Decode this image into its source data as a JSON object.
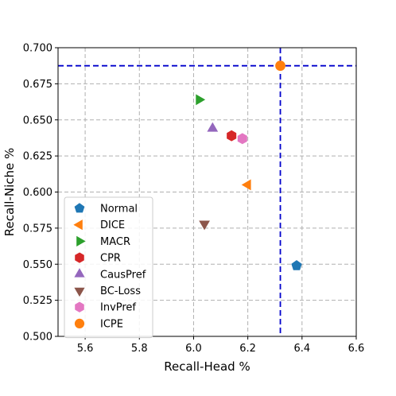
{
  "chart_data": {
    "type": "scatter",
    "title": "",
    "xlabel": "Recall-Head %",
    "ylabel": "Recall-Niche %",
    "xlim": [
      5.5,
      6.6
    ],
    "ylim": [
      0.5,
      0.7
    ],
    "xticks": [
      "5.6",
      "5.8",
      "6.0",
      "6.2",
      "6.4",
      "6.6"
    ],
    "xtick_values": [
      5.6,
      5.8,
      6.0,
      6.2,
      6.4,
      6.6
    ],
    "yticks": [
      "0.500",
      "0.525",
      "0.550",
      "0.575",
      "0.600",
      "0.625",
      "0.650",
      "0.675",
      "0.700"
    ],
    "ytick_values": [
      0.5,
      0.525,
      0.55,
      0.575,
      0.6,
      0.625,
      0.65,
      0.675,
      0.7
    ],
    "grid": true,
    "legend_position": "bottom-left",
    "reference_lines": {
      "x": 6.32,
      "y": 0.6875,
      "color": "#0000cc",
      "style": "dashed"
    },
    "series": [
      {
        "name": "Normal",
        "x": 6.38,
        "y": 0.549,
        "marker": "pentagon",
        "color": "#1f77b4"
      },
      {
        "name": "DICE",
        "x": 6.2,
        "y": 0.605,
        "marker": "triangle-left",
        "color": "#ff7f0e"
      },
      {
        "name": "MACR",
        "x": 6.02,
        "y": 0.664,
        "marker": "triangle-right",
        "color": "#2ca02c"
      },
      {
        "name": "CPR",
        "x": 6.14,
        "y": 0.639,
        "marker": "hexagon",
        "color": "#d62728"
      },
      {
        "name": "CausPref",
        "x": 6.07,
        "y": 0.644,
        "marker": "triangle-up",
        "color": "#9467bd"
      },
      {
        "name": "BC-Loss",
        "x": 6.04,
        "y": 0.578,
        "marker": "triangle-down",
        "color": "#8c564b"
      },
      {
        "name": "InvPref",
        "x": 6.18,
        "y": 0.637,
        "marker": "hexagon",
        "color": "#e377c2"
      },
      {
        "name": "ICPE",
        "x": 6.32,
        "y": 0.6875,
        "marker": "circle",
        "color": "#ff7f0e"
      }
    ]
  }
}
